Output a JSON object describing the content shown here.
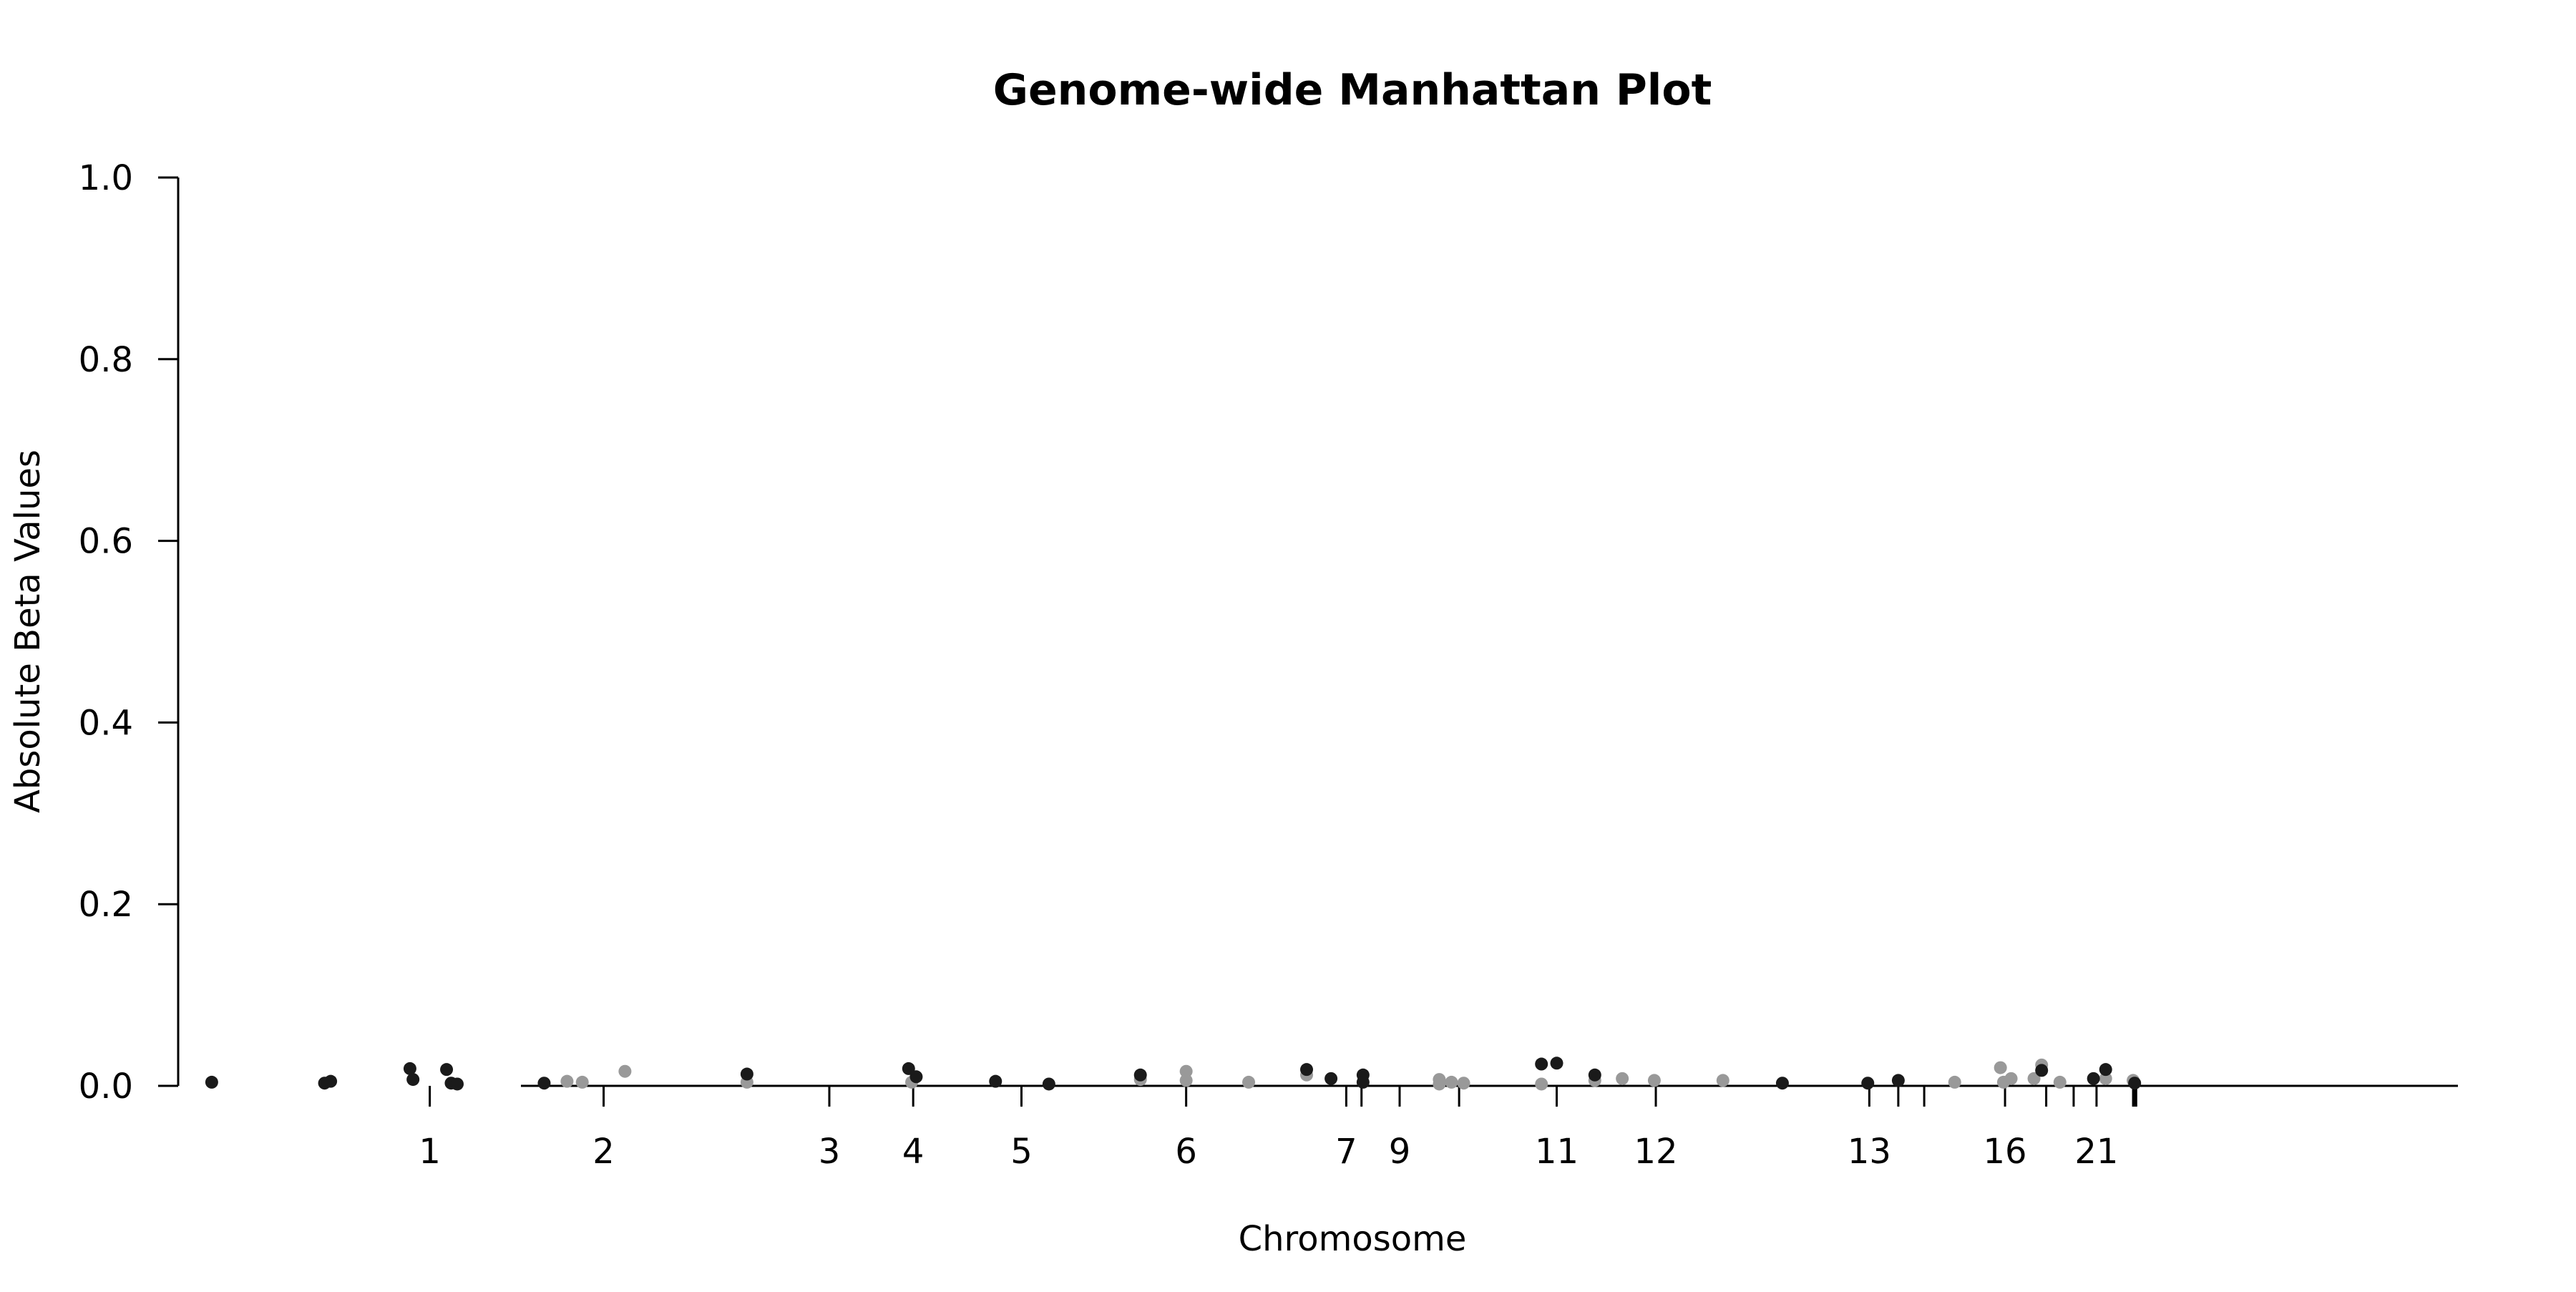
{
  "chart_data": {
    "type": "scatter",
    "title": "Genome-wide Manhattan Plot",
    "xlabel": "Chromosome",
    "ylabel": "Absolute Beta Values",
    "ylim": [
      0,
      1.0
    ],
    "y_ticks": [
      "0.0",
      "0.2",
      "0.4",
      "0.6",
      "0.8",
      "1.0"
    ],
    "x_range": [
      -165,
      1330
    ],
    "x_ticks": [
      {
        "pos": 0,
        "label": "1"
      },
      {
        "pos": 114,
        "label": "2"
      },
      {
        "pos": 262,
        "label": "3"
      },
      {
        "pos": 317,
        "label": "4"
      },
      {
        "pos": 388,
        "label": "5"
      },
      {
        "pos": 496,
        "label": "6"
      },
      {
        "pos": 601,
        "label": "7"
      },
      {
        "pos": 611,
        "label": ""
      },
      {
        "pos": 636,
        "label": "9"
      },
      {
        "pos": 675,
        "label": ""
      },
      {
        "pos": 739,
        "label": "11"
      },
      {
        "pos": 804,
        "label": "12"
      },
      {
        "pos": 944,
        "label": "13"
      },
      {
        "pos": 963,
        "label": ""
      },
      {
        "pos": 980,
        "label": ""
      },
      {
        "pos": 1033,
        "label": "16"
      },
      {
        "pos": 1060,
        "label": ""
      },
      {
        "pos": 1078,
        "label": ""
      },
      {
        "pos": 1093,
        "label": "21"
      },
      {
        "pos": 1117,
        "label": ""
      },
      {
        "pos": 1118,
        "label": ""
      },
      {
        "pos": 1119,
        "label": ""
      }
    ],
    "colors": {
      "dark": "#1a1a1a",
      "light": "#999999"
    },
    "points": [
      {
        "x": -143,
        "y": 0.004,
        "c": "dark"
      },
      {
        "x": -69,
        "y": 0.003,
        "c": "dark"
      },
      {
        "x": -65,
        "y": 0.005,
        "c": "dark"
      },
      {
        "x": -13,
        "y": 0.019,
        "c": "dark"
      },
      {
        "x": -11,
        "y": 0.007,
        "c": "dark"
      },
      {
        "x": 11,
        "y": 0.018,
        "c": "dark"
      },
      {
        "x": 14,
        "y": 0.003,
        "c": "dark"
      },
      {
        "x": 18,
        "y": 0.002,
        "c": "dark"
      },
      {
        "x": 75,
        "y": 0.003,
        "c": "dark"
      },
      {
        "x": 90,
        "y": 0.005,
        "c": "light"
      },
      {
        "x": 100,
        "y": 0.004,
        "c": "light"
      },
      {
        "x": 128,
        "y": 0.016,
        "c": "light"
      },
      {
        "x": 208,
        "y": 0.013,
        "c": "dark"
      },
      {
        "x": 208,
        "y": 0.004,
        "c": "light"
      },
      {
        "x": 314,
        "y": 0.019,
        "c": "dark"
      },
      {
        "x": 316,
        "y": 0.004,
        "c": "light"
      },
      {
        "x": 319,
        "y": 0.01,
        "c": "dark"
      },
      {
        "x": 371,
        "y": 0.005,
        "c": "dark"
      },
      {
        "x": 406,
        "y": 0.002,
        "c": "dark"
      },
      {
        "x": 466,
        "y": 0.012,
        "c": "dark"
      },
      {
        "x": 466,
        "y": 0.007,
        "c": "light"
      },
      {
        "x": 496,
        "y": 0.016,
        "c": "light"
      },
      {
        "x": 496,
        "y": 0.006,
        "c": "light"
      },
      {
        "x": 537,
        "y": 0.004,
        "c": "light"
      },
      {
        "x": 575,
        "y": 0.018,
        "c": "dark"
      },
      {
        "x": 575,
        "y": 0.012,
        "c": "light"
      },
      {
        "x": 591,
        "y": 0.008,
        "c": "dark"
      },
      {
        "x": 612,
        "y": 0.012,
        "c": "dark"
      },
      {
        "x": 612,
        "y": 0.004,
        "c": "dark"
      },
      {
        "x": 662,
        "y": 0.007,
        "c": "light"
      },
      {
        "x": 662,
        "y": 0.002,
        "c": "light"
      },
      {
        "x": 670,
        "y": 0.004,
        "c": "light"
      },
      {
        "x": 678,
        "y": 0.003,
        "c": "light"
      },
      {
        "x": 729,
        "y": 0.024,
        "c": "dark"
      },
      {
        "x": 729,
        "y": 0.002,
        "c": "light"
      },
      {
        "x": 739,
        "y": 0.025,
        "c": "dark"
      },
      {
        "x": 764,
        "y": 0.012,
        "c": "dark"
      },
      {
        "x": 764,
        "y": 0.006,
        "c": "light"
      },
      {
        "x": 782,
        "y": 0.008,
        "c": "light"
      },
      {
        "x": 803,
        "y": 0.006,
        "c": "light"
      },
      {
        "x": 848,
        "y": 0.006,
        "c": "light"
      },
      {
        "x": 887,
        "y": 0.003,
        "c": "dark"
      },
      {
        "x": 943,
        "y": 0.003,
        "c": "dark"
      },
      {
        "x": 963,
        "y": 0.006,
        "c": "dark"
      },
      {
        "x": 1000,
        "y": 0.004,
        "c": "light"
      },
      {
        "x": 1030,
        "y": 0.02,
        "c": "light"
      },
      {
        "x": 1032,
        "y": 0.004,
        "c": "light"
      },
      {
        "x": 1037,
        "y": 0.008,
        "c": "light"
      },
      {
        "x": 1052,
        "y": 0.008,
        "c": "light"
      },
      {
        "x": 1057,
        "y": 0.023,
        "c": "light"
      },
      {
        "x": 1057,
        "y": 0.017,
        "c": "dark"
      },
      {
        "x": 1069,
        "y": 0.004,
        "c": "light"
      },
      {
        "x": 1091,
        "y": 0.008,
        "c": "dark"
      },
      {
        "x": 1099,
        "y": 0.018,
        "c": "dark"
      },
      {
        "x": 1099,
        "y": 0.008,
        "c": "light"
      },
      {
        "x": 1117,
        "y": 0.006,
        "c": "light"
      },
      {
        "x": 1118,
        "y": 0.003,
        "c": "dark"
      }
    ]
  }
}
